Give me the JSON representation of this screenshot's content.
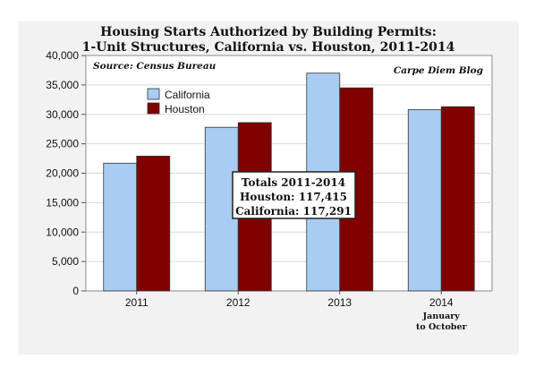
{
  "chart_data": {
    "type": "bar",
    "title": "Housing Starts Authorized by Building Permits:",
    "subtitle": "1-Unit Structures, California vs. Houston, 2011-2014",
    "categories": [
      "2011",
      "2012",
      "2013",
      "2014"
    ],
    "category_sublabels": [
      "",
      "",
      "",
      "January\nto October"
    ],
    "series": [
      {
        "name": "California",
        "values": [
          21700,
          27800,
          37000,
          30800
        ],
        "color": "#a9cdf2"
      },
      {
        "name": "Houston",
        "values": [
          22900,
          28600,
          34500,
          31300
        ],
        "color": "#800000"
      }
    ],
    "xlabel": "",
    "ylabel": "",
    "ylim": [
      0,
      40000
    ],
    "yticks": [
      "0",
      "5,000",
      "10,000",
      "15,000",
      "20,000",
      "25,000",
      "30,000",
      "35,000",
      "40,000"
    ],
    "grid": true,
    "legend_position": "top-left",
    "source": "Source: Census Bureau",
    "credit": "Carpe Diem Blog",
    "annotation": {
      "lines": [
        "Totals 2011-2014",
        "Houston: 117,415",
        "California: 117,291"
      ]
    }
  }
}
